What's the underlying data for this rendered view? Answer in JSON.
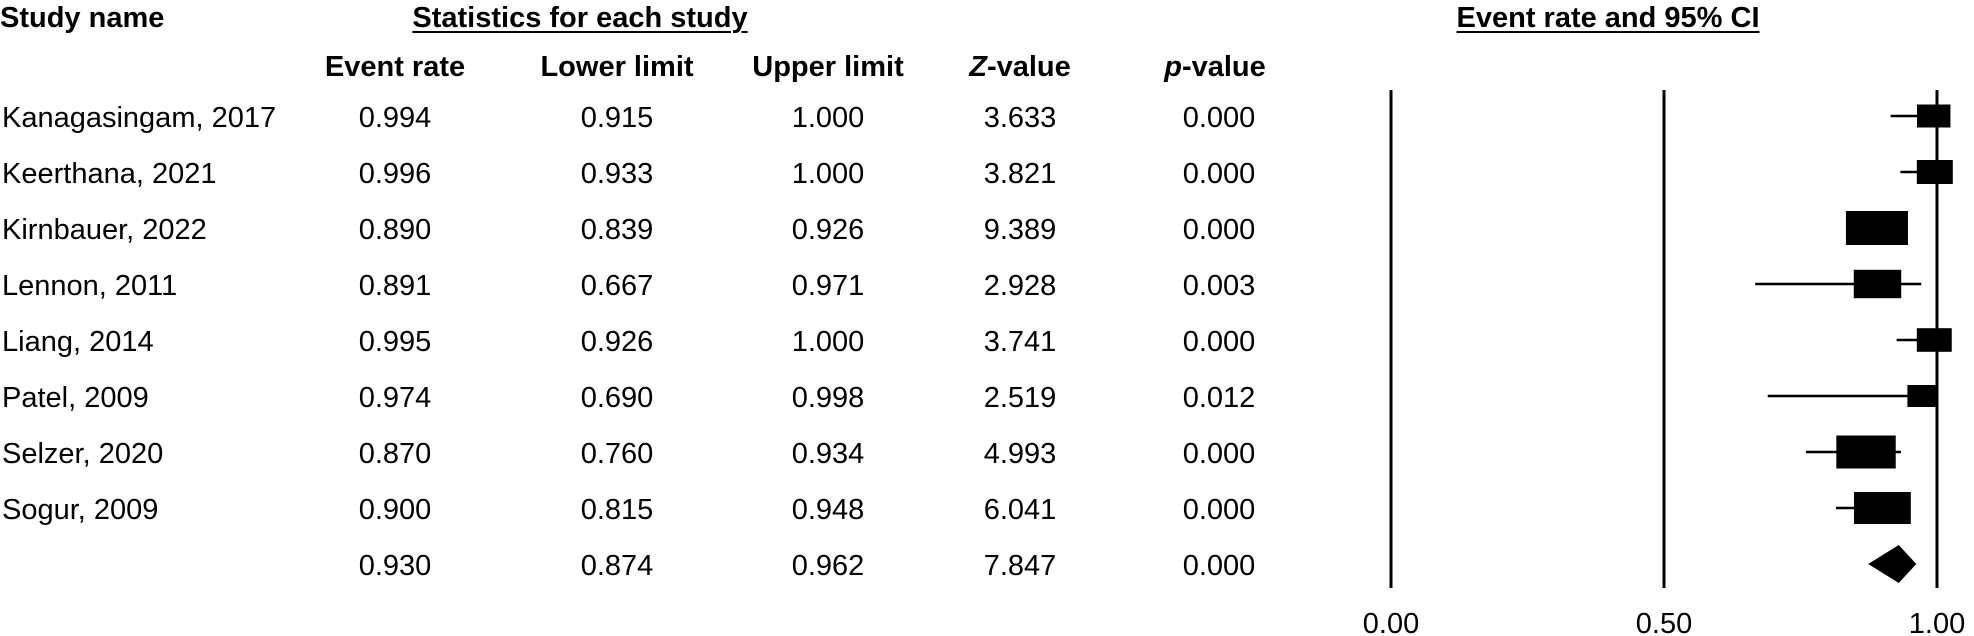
{
  "headers": {
    "study_name": "Study name",
    "stats_group": "Statistics for each study",
    "plot_title": "Event rate and 95% CI",
    "event_rate": "Event rate",
    "lower_limit": "Lower limit",
    "upper_limit": "Upper limit",
    "z_prefix": "Z",
    "z_suffix": "-value",
    "p_prefix": "p",
    "p_suffix": "-value"
  },
  "rows": [
    {
      "study": "Kanagasingam, 2017",
      "event_rate": "0.994",
      "lower": "0.915",
      "upper": "1.000",
      "z": "3.633",
      "p": "0.000"
    },
    {
      "study": "Keerthana, 2021",
      "event_rate": "0.996",
      "lower": "0.933",
      "upper": "1.000",
      "z": "3.821",
      "p": "0.000"
    },
    {
      "study": "Kirnbauer, 2022",
      "event_rate": "0.890",
      "lower": "0.839",
      "upper": "0.926",
      "z": "9.389",
      "p": "0.000"
    },
    {
      "study": "Lennon, 2011",
      "event_rate": "0.891",
      "lower": "0.667",
      "upper": "0.971",
      "z": "2.928",
      "p": "0.003"
    },
    {
      "study": "Liang, 2014",
      "event_rate": "0.995",
      "lower": "0.926",
      "upper": "1.000",
      "z": "3.741",
      "p": "0.000"
    },
    {
      "study": "Patel, 2009",
      "event_rate": "0.974",
      "lower": "0.690",
      "upper": "0.998",
      "z": "2.519",
      "p": "0.012"
    },
    {
      "study": "Selzer, 2020",
      "event_rate": "0.870",
      "lower": "0.760",
      "upper": "0.934",
      "z": "4.993",
      "p": "0.000"
    },
    {
      "study": "Sogur, 2009",
      "event_rate": "0.900",
      "lower": "0.815",
      "upper": "0.948",
      "z": "6.041",
      "p": "0.000"
    },
    {
      "study": "",
      "event_rate": "0.930",
      "lower": "0.874",
      "upper": "0.962",
      "z": "7.847",
      "p": "0.000"
    }
  ],
  "chart_data": {
    "type": "forest",
    "title": "Event rate and 95% CI",
    "xlim": [
      0,
      1
    ],
    "x_ticks": [
      "0.00",
      "0.50",
      "1.00"
    ],
    "reference_lines": [
      0,
      0.5,
      1
    ],
    "studies": [
      {
        "name": "Kanagasingam, 2017",
        "estimate": 0.994,
        "lower": 0.915,
        "upper": 1.0,
        "weight": 0.45
      },
      {
        "name": "Keerthana, 2021",
        "estimate": 0.996,
        "lower": 0.933,
        "upper": 1.0,
        "weight": 0.5
      },
      {
        "name": "Kirnbauer, 2022",
        "estimate": 0.89,
        "lower": 0.839,
        "upper": 0.926,
        "weight": 1.0
      },
      {
        "name": "Lennon, 2011",
        "estimate": 0.891,
        "lower": 0.667,
        "upper": 0.971,
        "weight": 0.72
      },
      {
        "name": "Liang, 2014",
        "estimate": 0.995,
        "lower": 0.926,
        "upper": 1.0,
        "weight": 0.48
      },
      {
        "name": "Patel, 2009",
        "estimate": 0.974,
        "lower": 0.69,
        "upper": 0.998,
        "weight": 0.4
      },
      {
        "name": "Selzer, 2020",
        "estimate": 0.87,
        "lower": 0.76,
        "upper": 0.934,
        "weight": 0.95
      },
      {
        "name": "Sogur, 2009",
        "estimate": 0.9,
        "lower": 0.815,
        "upper": 0.948,
        "weight": 0.9
      }
    ],
    "summary": {
      "estimate": 0.93,
      "lower": 0.874,
      "upper": 0.962
    }
  }
}
